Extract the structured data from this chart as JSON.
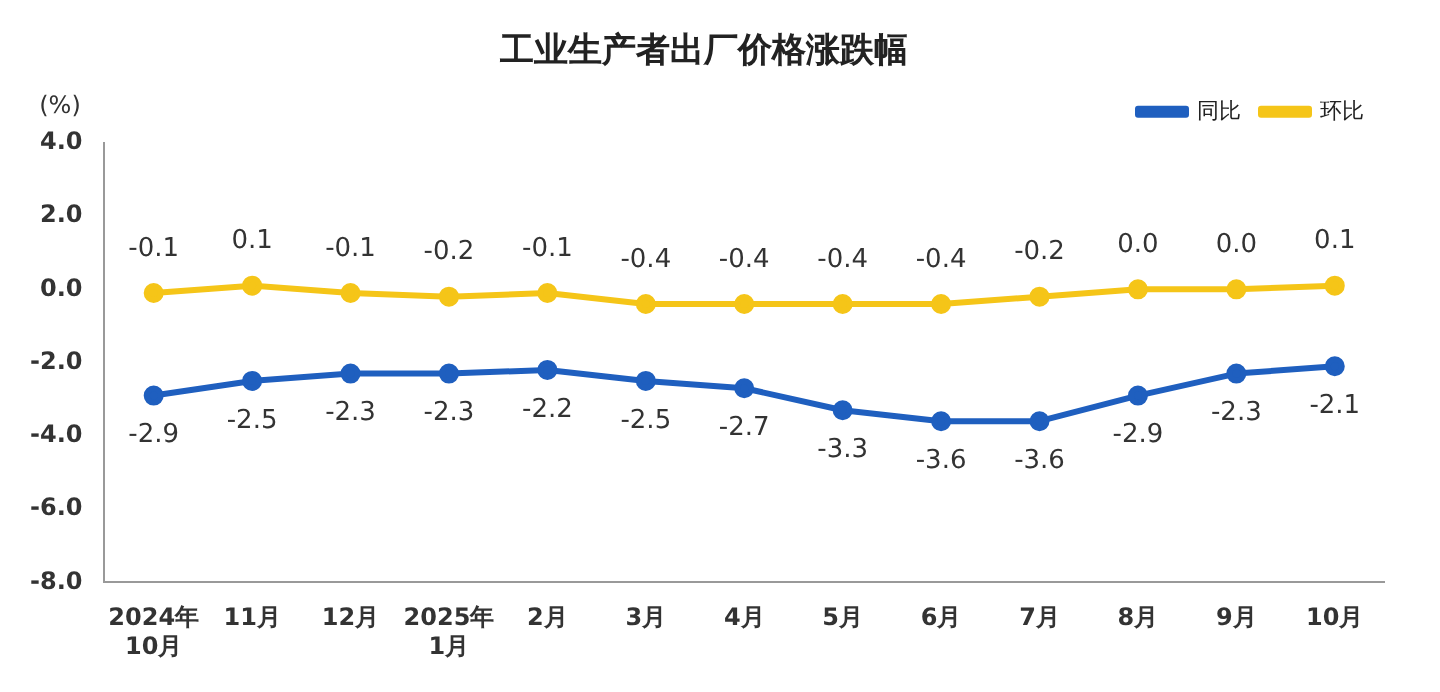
{
  "chart_data": {
    "type": "line",
    "title": "工业生产者出厂价格涨跌幅",
    "ylabel": "(%)",
    "categories": [
      "2024年\n10月",
      "11月",
      "12月",
      "2025年\n1月",
      "2月",
      "3月",
      "4月",
      "5月",
      "6月",
      "7月",
      "8月",
      "9月",
      "10月"
    ],
    "series": [
      {
        "name": "同比",
        "color": "#1f5fbf",
        "values": [
          -2.9,
          -2.5,
          -2.3,
          -2.3,
          -2.2,
          -2.5,
          -2.7,
          -3.3,
          -3.6,
          -3.6,
          -2.9,
          -2.3,
          -2.1
        ],
        "value_labels": [
          "-2.9",
          "-2.5",
          "-2.3",
          "-2.3",
          "-2.2",
          "-2.5",
          "-2.7",
          "-3.3",
          "-3.6",
          "-3.6",
          "-2.9",
          "-2.3",
          "-2.1"
        ]
      },
      {
        "name": "环比",
        "color": "#f5c518",
        "values": [
          -0.1,
          0.1,
          -0.1,
          -0.2,
          -0.1,
          -0.4,
          -0.4,
          -0.4,
          -0.4,
          -0.2,
          0.0,
          0.0,
          0.1
        ],
        "value_labels": [
          "-0.1",
          "0.1",
          "-0.1",
          "-0.2",
          "-0.1",
          "-0.4",
          "-0.4",
          "-0.4",
          "-0.4",
          "-0.2",
          "0.0",
          "0.0",
          "0.1"
        ]
      }
    ],
    "ylim": [
      -8,
      4
    ],
    "yticks": [
      {
        "value": -8,
        "label": "-8.0"
      },
      {
        "value": -6,
        "label": "-6.0"
      },
      {
        "value": -4,
        "label": "-4.0"
      },
      {
        "value": -2,
        "label": "-2.0"
      },
      {
        "value": 0,
        "label": "0.0"
      },
      {
        "value": 2,
        "label": "2.0"
      },
      {
        "value": 4,
        "label": "4.0"
      }
    ],
    "grid": false,
    "legend": "top right",
    "marker": "circle",
    "line_style": "solid"
  }
}
